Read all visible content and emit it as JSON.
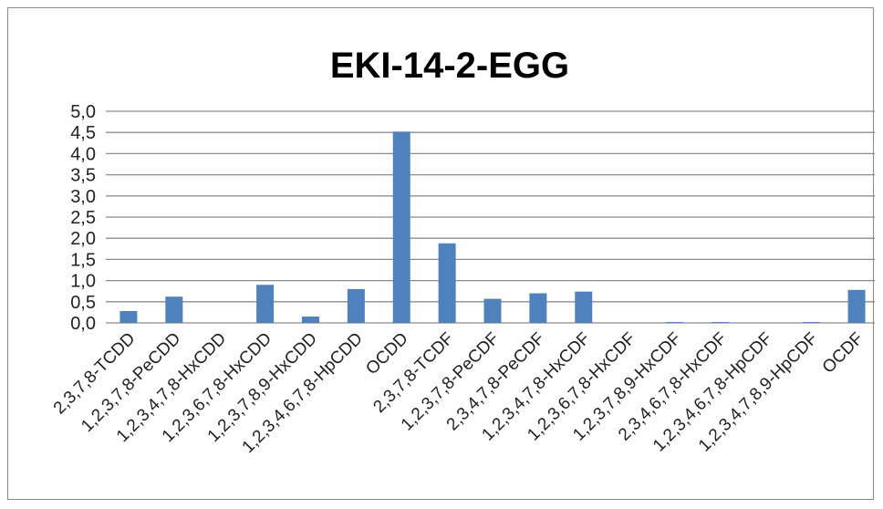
{
  "chart_data": {
    "type": "bar",
    "title": "EKI-14-2-EGG",
    "xlabel": "",
    "ylabel": "",
    "ylim": [
      0,
      5
    ],
    "yticks": [
      "0,0",
      "0,5",
      "1,0",
      "1,5",
      "2,0",
      "2,5",
      "3,0",
      "3,5",
      "4,0",
      "4,5",
      "5,0"
    ],
    "grid": true,
    "legend": "none",
    "bar_color": "#4f81bd",
    "categories": [
      "2,3,7,8-TCDD",
      "1,2,3,7,8-PeCDD",
      "1,2,3,4,7,8-HxCDD",
      "1,2,3,6,7,8-HxCDD",
      "1,2,3,7,8,9-HxCDD",
      "1,2,3,4,6,7,8-HpCDD",
      "OCDD",
      "2,3,7,8-TCDF",
      "1,2,3,7,8-PeCDF",
      "2,3,4,7,8-PeCDF",
      "1,2,3,4,7,8-HxCDF",
      "1,2,3,6,7,8-HxCDF",
      "1,2,3,7,8,9-HxCDF",
      "2,3,4,6,7,8-HxCDF",
      "1,2,3,4,6,7,8-HpCDF",
      "1,2,3,4,7,8,9-HpCDF",
      "OCDF"
    ],
    "values": [
      0.28,
      0.62,
      0.0,
      0.9,
      0.15,
      0.8,
      4.52,
      1.88,
      0.57,
      0.7,
      0.74,
      0.0,
      0.02,
      0.02,
      0.0,
      0.02,
      0.78
    ]
  }
}
